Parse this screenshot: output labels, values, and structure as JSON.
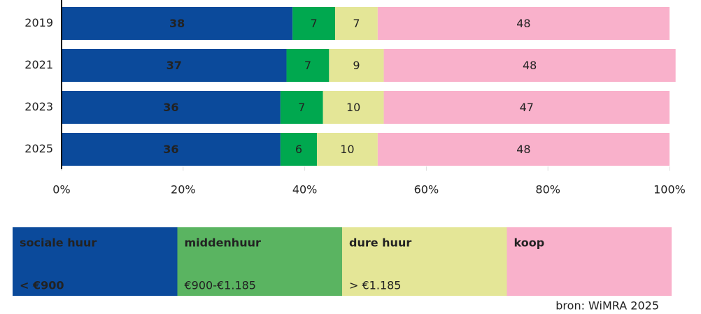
{
  "chart_data": {
    "type": "stacked_barh",
    "categories": [
      "2019",
      "2021",
      "2023",
      "2025"
    ],
    "series": [
      {
        "name": "sociale huur",
        "price": "< €900",
        "color": "#0b4a9b",
        "legend_color": "#0b4a9b",
        "values": [
          38,
          37,
          36,
          36
        ]
      },
      {
        "name": "middenhuur",
        "price": "€900-€1.185",
        "color": "#00a84f",
        "legend_color": "#5ab461",
        "values": [
          7,
          7,
          7,
          6
        ]
      },
      {
        "name": "dure huur",
        "price": "> €1.185",
        "color": "#e4e697",
        "legend_color": "#e4e697",
        "values": [
          7,
          9,
          10,
          10
        ]
      },
      {
        "name": "koop",
        "price": "",
        "color": "#f9b1cb",
        "legend_color": "#f9b1cb",
        "values": [
          48,
          48,
          47,
          48
        ]
      }
    ],
    "xlim": [
      0,
      100
    ],
    "xticks": [
      {
        "value": 0,
        "label": "0%"
      },
      {
        "value": 20,
        "label": "20%"
      },
      {
        "value": 40,
        "label": "40%"
      },
      {
        "value": 60,
        "label": "60%"
      },
      {
        "value": 80,
        "label": "80%"
      },
      {
        "value": 100,
        "label": "100%"
      }
    ],
    "source": "bron: WiMRA 2025"
  }
}
